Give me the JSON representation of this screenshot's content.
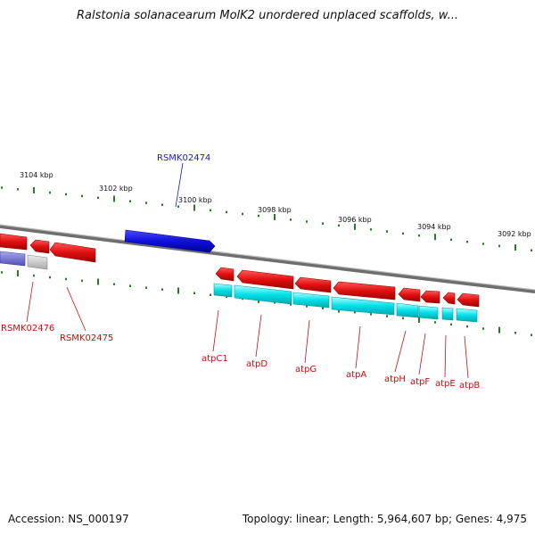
{
  "title": "Ralstonia solanacearum MolK2 unordered unplaced scaffolds, w...",
  "accession": "Accession: NS_000197",
  "topology": "Topology: linear; Length: 5,964,607 bp; Genes: 4,975",
  "colors": {
    "gene": "#e01010",
    "gene_highlight": "#1010d8",
    "pseudo": "#c0c0c0",
    "rna": "#00e0e8",
    "partial": "#7070d0",
    "tick": "#2a7a2a",
    "backbone": "#888888"
  },
  "ticks": [
    "3104 kbp",
    "3102 kbp",
    "3100 kbp",
    "3098 kbp",
    "3096 kbp",
    "3094 kbp",
    "3092 kbp"
  ],
  "genes": [
    {
      "label": "RSMK02474",
      "color": "#1a1ad0"
    },
    {
      "label": "RSMK02476",
      "color": "#c01010"
    },
    {
      "label": "RSMK02475",
      "color": "#c01010"
    },
    {
      "label": "atpC1",
      "color": "#c01010"
    },
    {
      "label": "atpD",
      "color": "#c01010"
    },
    {
      "label": "atpG",
      "color": "#c01010"
    },
    {
      "label": "atpA",
      "color": "#c01010"
    },
    {
      "label": "atpH",
      "color": "#c01010"
    },
    {
      "label": "atpF",
      "color": "#c01010"
    },
    {
      "label": "atpE",
      "color": "#c01010"
    },
    {
      "label": "atpB",
      "color": "#c01010"
    }
  ]
}
